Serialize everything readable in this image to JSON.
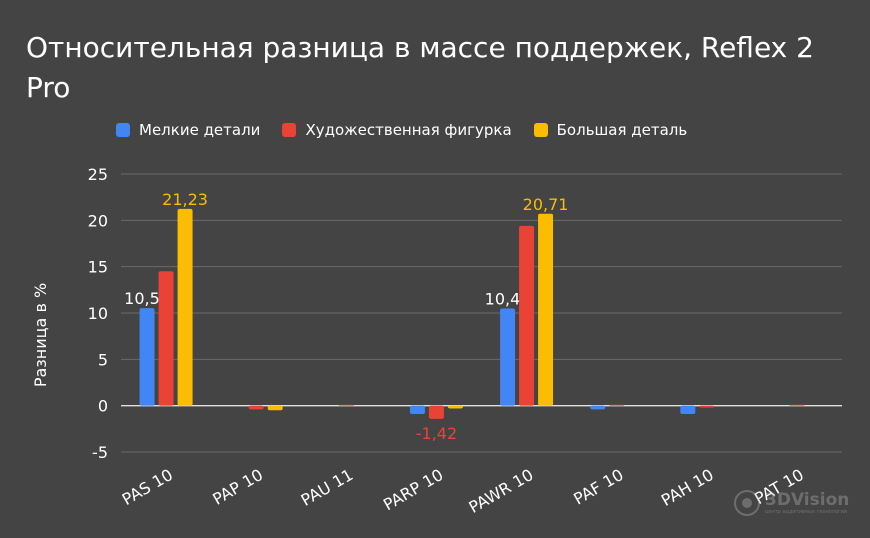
{
  "chart_data": {
    "type": "bar",
    "title": "Относительная разница в массе поддержек, Reflex 2 Pro",
    "ylabel": "Разница в %",
    "xlabel": "",
    "ylim": [
      -5,
      25
    ],
    "yticks": [
      -5,
      0,
      5,
      10,
      15,
      20,
      25
    ],
    "grid": true,
    "legend_position": "top",
    "categories": [
      "PAS 10",
      "PAP 10",
      "PAU 11",
      "PARP 10",
      "PAWR 10",
      "PAF 10",
      "PAH 10",
      "PAT 10"
    ],
    "series": [
      {
        "name": "Мелкие детали",
        "color": "#4285F4",
        "values": [
          10.53,
          0,
          0,
          -0.9,
          10.48,
          -0.4,
          -0.9,
          0
        ],
        "labels": [
          "10,53",
          "",
          "",
          "",
          "10,48",
          "",
          "",
          ""
        ]
      },
      {
        "name": "Художественная фигурка",
        "color": "#EA4335",
        "values": [
          14.5,
          -0.4,
          0.1,
          -1.42,
          19.4,
          0.1,
          -0.2,
          0.1
        ],
        "labels": [
          "",
          "",
          "",
          "-1,42",
          "",
          "",
          "",
          ""
        ]
      },
      {
        "name": "Большая деталь",
        "color": "#FBBC04",
        "values": [
          21.23,
          -0.5,
          0,
          -0.3,
          20.71,
          0,
          0,
          0
        ],
        "labels": [
          "21,23",
          "",
          "",
          "",
          "20,71",
          "",
          "",
          ""
        ]
      }
    ]
  },
  "watermark": {
    "text": "3DVision",
    "subtext": "центр аддитивных технологий"
  },
  "colors": {
    "background": "#444444",
    "grid": "#6a6a6a",
    "axis": "#e0e0e0",
    "text": "#ffffff"
  }
}
